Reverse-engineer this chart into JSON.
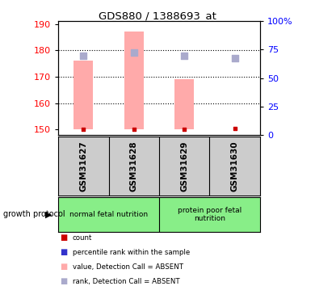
{
  "title": "GDS880 / 1388693_at",
  "samples": [
    "GSM31627",
    "GSM31628",
    "GSM31629",
    "GSM31630"
  ],
  "bar_values": [
    176,
    187,
    169,
    150
  ],
  "bar_baseline": 150,
  "rank_values": [
    178,
    179,
    178,
    177
  ],
  "count_values": [
    150,
    150,
    150,
    150.5
  ],
  "ylim_left": [
    148,
    191
  ],
  "ylim_right": [
    0,
    100
  ],
  "yticks_left": [
    150,
    160,
    170,
    180,
    190
  ],
  "yticks_right": [
    0,
    25,
    50,
    75,
    100
  ],
  "ytick_labels_right": [
    "0",
    "25",
    "50",
    "75",
    "100%"
  ],
  "bar_color": "#ffaaaa",
  "rank_color": "#aaaacc",
  "count_color": "#cc0000",
  "percentile_color": "#3333cc",
  "group1_label": "normal fetal nutrition",
  "group2_label": "protein poor fetal\nnutrition",
  "group_label_prefix": "growth protocol",
  "group_bg_color": "#88ee88",
  "sample_bg_color": "#cccccc",
  "bg_color": "#ffffff",
  "plot_bg_color": "#ffffff"
}
